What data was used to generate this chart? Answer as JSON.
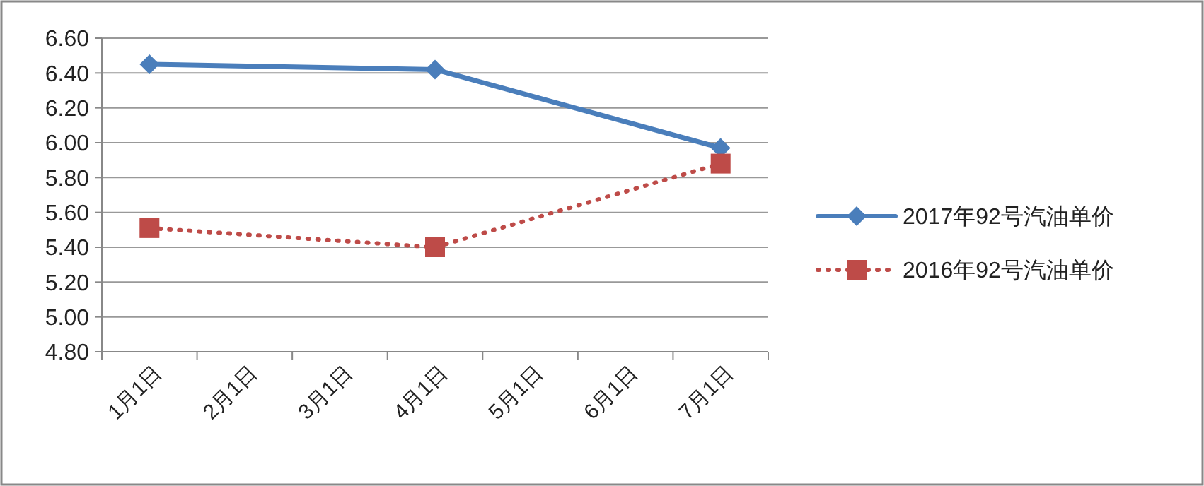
{
  "chart_data": {
    "type": "line",
    "categories": [
      "1月1日",
      "2月1日",
      "3月1日",
      "4月1日",
      "5月1日",
      "6月1日",
      "7月1日"
    ],
    "series": [
      {
        "name": "2017年92号汽油单价",
        "color": "#4a7ebb",
        "values": [
          6.45,
          null,
          null,
          6.42,
          null,
          null,
          5.97
        ],
        "marker": "diamond",
        "line_style": "solid"
      },
      {
        "name": "2016年92号汽油单价",
        "color": "#be4b48",
        "values": [
          5.51,
          null,
          null,
          5.4,
          null,
          null,
          5.88
        ],
        "marker": "square",
        "line_style": "dotted"
      }
    ],
    "ylim": [
      4.8,
      6.6
    ],
    "yticks": [
      {
        "value": 4.8,
        "label": "4.80"
      },
      {
        "value": 5.0,
        "label": "5.00"
      },
      {
        "value": 5.2,
        "label": "5.20"
      },
      {
        "value": 5.4,
        "label": "5.40"
      },
      {
        "value": 5.6,
        "label": "5.60"
      },
      {
        "value": 5.8,
        "label": "5.80"
      },
      {
        "value": 6.0,
        "label": "6.00"
      },
      {
        "value": 6.2,
        "label": "6.20"
      },
      {
        "value": 6.4,
        "label": "6.40"
      },
      {
        "value": 6.6,
        "label": "6.60"
      }
    ],
    "grid": "y",
    "legend": "right"
  }
}
